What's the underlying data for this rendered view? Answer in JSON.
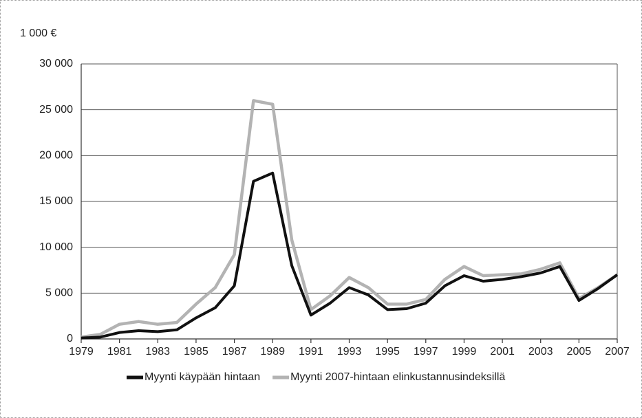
{
  "chart_data": {
    "type": "line",
    "y_unit_label": "1 000 €",
    "x": [
      1979,
      1980,
      1981,
      1982,
      1983,
      1984,
      1985,
      1986,
      1987,
      1988,
      1989,
      1990,
      1991,
      1992,
      1993,
      1994,
      1995,
      1996,
      1997,
      1998,
      1999,
      2000,
      2001,
      2002,
      2003,
      2004,
      2005,
      2006,
      2007
    ],
    "series": [
      {
        "name": "Myynti käypään hintaan",
        "color": "#111111",
        "values": [
          100,
          200,
          700,
          900,
          800,
          1000,
          2300,
          3400,
          5800,
          17200,
          18100,
          8000,
          2600,
          3900,
          5600,
          4800,
          3200,
          3300,
          3900,
          5800,
          6900,
          6300,
          6500,
          6800,
          7200,
          7900,
          4200,
          5500,
          7000
        ]
      },
      {
        "name": "Myynti 2007-hintaan elinkustannusindeksillä",
        "color": "#b3b3b3",
        "values": [
          200,
          500,
          1600,
          1900,
          1600,
          1800,
          3800,
          5600,
          9200,
          26000,
          25600,
          10800,
          3200,
          4700,
          6700,
          5600,
          3800,
          3800,
          4300,
          6500,
          7900,
          6900,
          7000,
          7100,
          7600,
          8300,
          4400,
          5600,
          7000
        ]
      }
    ],
    "xlim": [
      1979,
      2007
    ],
    "xticks": [
      1979,
      1981,
      1983,
      1985,
      1987,
      1989,
      1991,
      1993,
      1995,
      1997,
      1999,
      2001,
      2003,
      2005,
      2007
    ],
    "ylim": [
      0,
      30000
    ],
    "yticks": [
      0,
      {
        "value": 5000,
        "label": "5 000"
      },
      {
        "value": 10000,
        "label": "10 000"
      },
      {
        "value": 15000,
        "label": "15 000"
      },
      {
        "value": 20000,
        "label": "20 000"
      },
      {
        "value": 25000,
        "label": "25 000"
      },
      {
        "value": 30000,
        "label": "30 000"
      }
    ],
    "grid": true,
    "legend": "bottom"
  }
}
